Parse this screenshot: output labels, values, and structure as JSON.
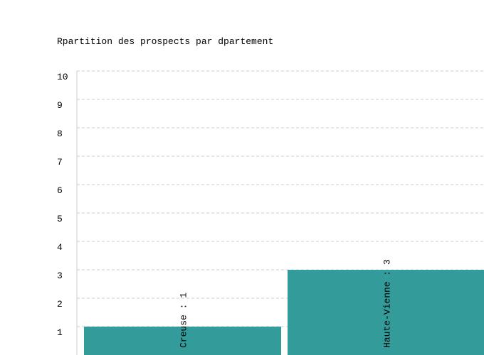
{
  "chart_data": {
    "type": "bar",
    "title": "Rpartition des prospects par dpartement",
    "values": [
      1,
      3
    ],
    "value_labels": [
      "Creuse : 1",
      "Haute-Vienne : 3"
    ],
    "color": "#339b99",
    "ylim": [
      0,
      10
    ],
    "yticks": [
      1,
      2,
      3,
      4,
      5,
      6,
      7,
      8,
      9,
      10
    ],
    "grid": true
  }
}
